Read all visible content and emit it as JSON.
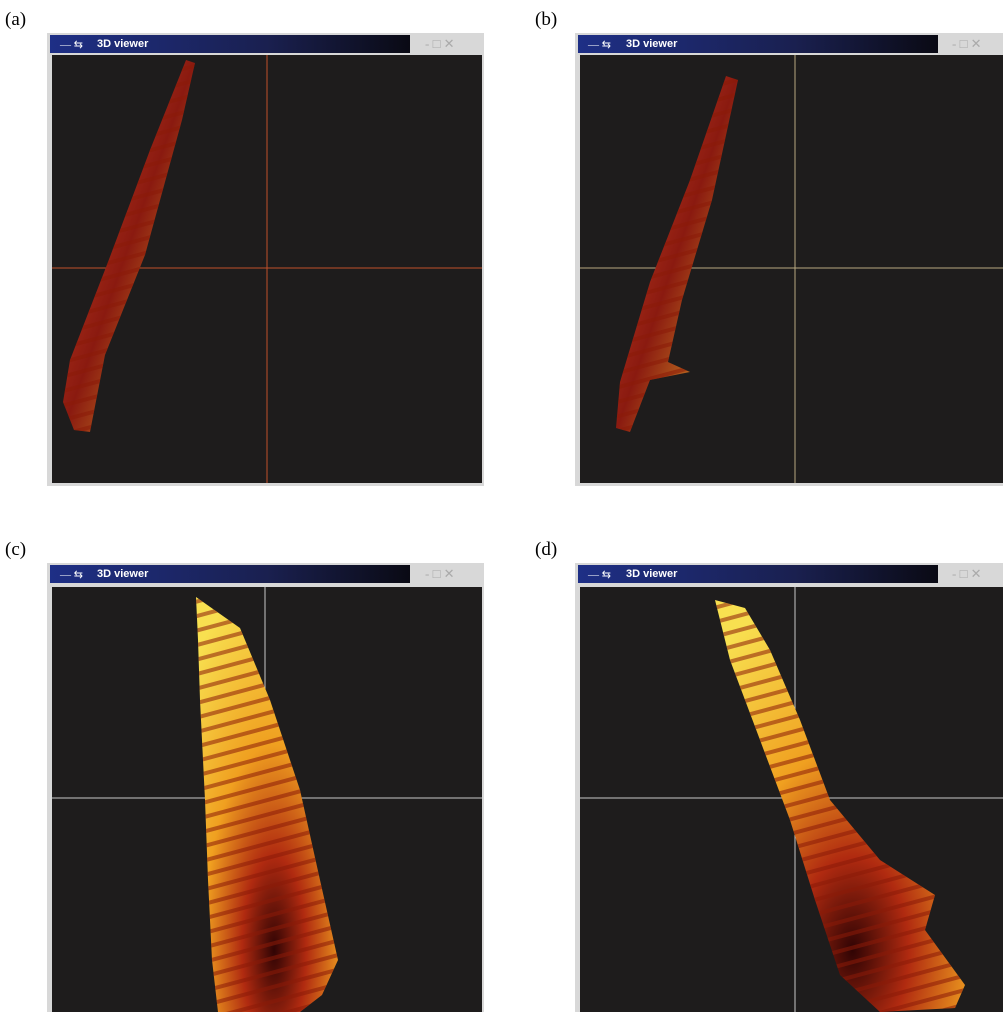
{
  "panels": [
    {
      "label": "(a)",
      "window_title": "3D viewer"
    },
    {
      "label": "(b)",
      "window_title": "3D viewer"
    },
    {
      "label": "(c)",
      "window_title": "3D viewer"
    },
    {
      "label": "(d)",
      "window_title": "3D viewer"
    }
  ]
}
